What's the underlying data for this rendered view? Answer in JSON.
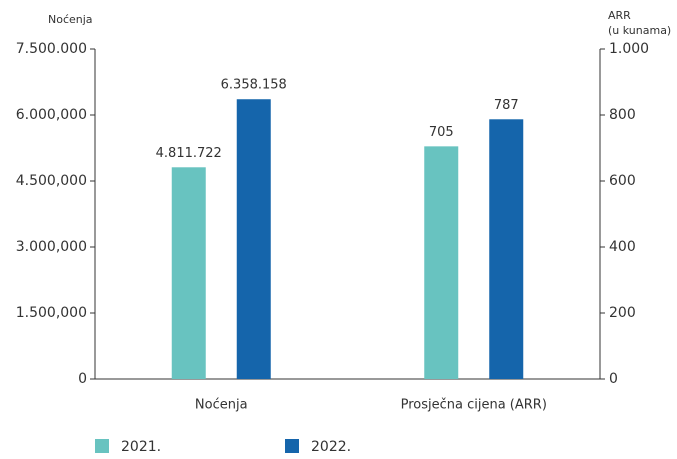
{
  "chart_data": {
    "type": "bar",
    "ylabel": "Noćenja",
    "y2label": [
      "ARR",
      "(u kunama)"
    ],
    "categories": [
      "Noćenja",
      "Prosječna cijena (ARR)"
    ],
    "category_axes": [
      "y",
      "y2"
    ],
    "series": [
      {
        "name": "2021.",
        "color": "#68c3c0",
        "values": [
          4811722,
          705
        ],
        "value_labels": [
          "4.811.722",
          "705"
        ]
      },
      {
        "name": "2022.",
        "color": "#1565ab",
        "values": [
          6358158,
          787
        ],
        "value_labels": [
          "6.358.158",
          "787"
        ]
      }
    ],
    "ylim": [
      0,
      7500000
    ],
    "yticks": [
      0,
      {
        "value": 1500000,
        "label": "1.500,000"
      },
      {
        "value": 3000000,
        "label": "3.000,000"
      },
      {
        "value": 4500000,
        "label": "4.500,000"
      },
      {
        "value": 6000000,
        "label": "6.000,000"
      },
      {
        "value": 7500000,
        "label": "7.500.000"
      }
    ],
    "y2lim": [
      0,
      1000
    ],
    "y2ticks": [
      0,
      200,
      400,
      600,
      800,
      {
        "value": 1000,
        "label": "1.000"
      }
    ],
    "grid": false
  }
}
